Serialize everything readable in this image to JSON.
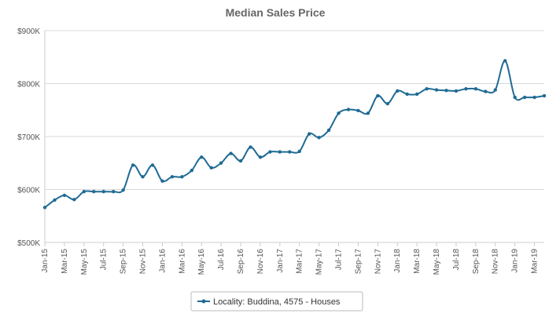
{
  "chart_data": {
    "type": "line",
    "title": "Median Sales Price",
    "xlabel": "",
    "ylabel": "",
    "ylim": [
      500000,
      900000
    ],
    "y_ticks": [
      500000,
      600000,
      700000,
      800000,
      900000
    ],
    "y_tick_labels": [
      "$500K",
      "$600K",
      "$700K",
      "$800K",
      "$900K"
    ],
    "x_tick_labels": [
      "Jan-15",
      "Mar-15",
      "May-15",
      "Jul-15",
      "Sep-15",
      "Nov-15",
      "Jan-16",
      "Mar-16",
      "May-16",
      "Jul-16",
      "Sep-16",
      "Nov-16",
      "Jan-17",
      "Mar-17",
      "May-17",
      "Jul-17",
      "Sep-17",
      "Nov-17",
      "Jan-18",
      "Mar-18",
      "May-18",
      "Jul-18",
      "Sep-18",
      "Nov-18",
      "Jan-19",
      "Mar-19"
    ],
    "x_range": [
      "Jan-15",
      "Apr-19"
    ],
    "grid": true,
    "legend_position": "bottom-center",
    "series": [
      {
        "name": "Locality: Buddina, 4575 - Houses",
        "color": "#1f6b94",
        "x": [
          "Jan-15",
          "Feb-15",
          "Mar-15",
          "Apr-15",
          "May-15",
          "Jun-15",
          "Jul-15",
          "Aug-15",
          "Sep-15",
          "Oct-15",
          "Nov-15",
          "Dec-15",
          "Jan-16",
          "Feb-16",
          "Mar-16",
          "Apr-16",
          "May-16",
          "Jun-16",
          "Jul-16",
          "Aug-16",
          "Sep-16",
          "Oct-16",
          "Nov-16",
          "Dec-16",
          "Jan-17",
          "Feb-17",
          "Mar-17",
          "Apr-17",
          "May-17",
          "Jun-17",
          "Jul-17",
          "Aug-17",
          "Sep-17",
          "Oct-17",
          "Nov-17",
          "Dec-17",
          "Jan-18",
          "Feb-18",
          "Mar-18",
          "Apr-18",
          "May-18",
          "Jun-18",
          "Jul-18",
          "Aug-18",
          "Sep-18",
          "Oct-18",
          "Nov-18",
          "Dec-18",
          "Jan-19",
          "Feb-19",
          "Mar-19",
          "Apr-19"
        ],
        "values": [
          566000,
          580000,
          589000,
          581000,
          596000,
          596000,
          596000,
          596000,
          599000,
          646000,
          624000,
          646000,
          616000,
          624000,
          624000,
          636000,
          661000,
          641000,
          650000,
          668000,
          654000,
          680000,
          661000,
          671000,
          671000,
          671000,
          672000,
          705000,
          698000,
          712000,
          744000,
          751000,
          749000,
          744000,
          777000,
          762000,
          786000,
          780000,
          780000,
          790000,
          788000,
          787000,
          786000,
          790000,
          790000,
          785000,
          788000,
          843000,
          774000,
          774000,
          774000,
          777000
        ]
      }
    ]
  }
}
